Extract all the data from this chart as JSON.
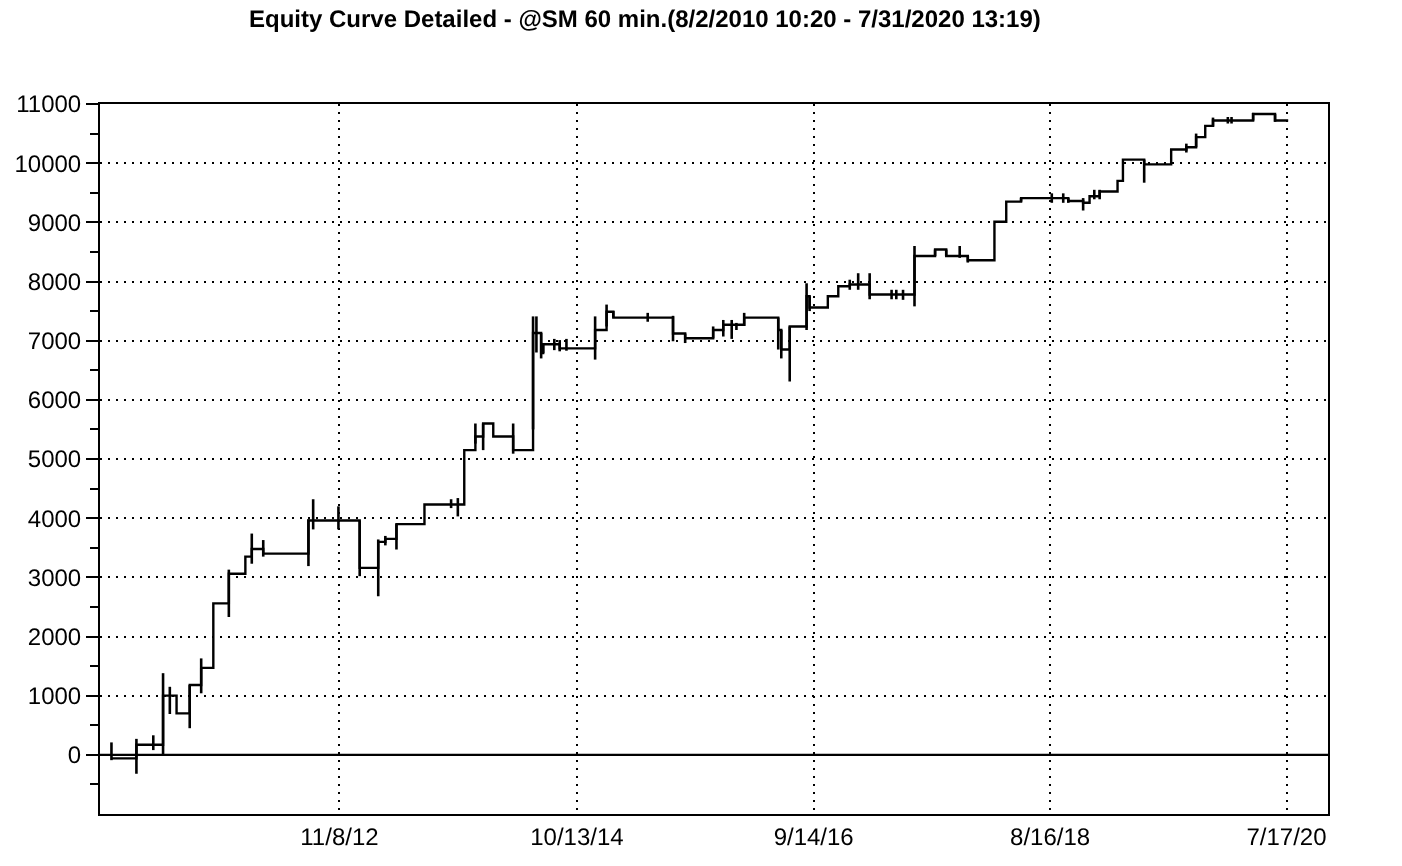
{
  "chart_data": {
    "type": "step",
    "title": "Equity Curve Detailed - @SM 60 min.(8/2/2010 10:20 - 7/31/2020 13:19)",
    "x": [
      "2011-01-02",
      "2011-03-17",
      "2011-05-06",
      "2011-06-04",
      "2011-06-24",
      "2011-07-14",
      "2011-08-22",
      "2011-09-25",
      "2011-10-31",
      "2011-12-16",
      "2012-02-03",
      "2012-02-22",
      "2012-03-27",
      "2012-08-08",
      "2012-08-22",
      "2012-11-05",
      "2013-01-07",
      "2013-03-03",
      "2013-03-24",
      "2013-04-26",
      "2013-07-18",
      "2013-10-05",
      "2013-10-25",
      "2013-11-13",
      "2013-12-16",
      "2014-01-08",
      "2014-02-07",
      "2014-04-07",
      "2014-06-05",
      "2014-06-15",
      "2014-06-29",
      "2014-07-05",
      "2014-08-07",
      "2014-08-23",
      "2014-09-12",
      "2014-12-06",
      "2015-01-09",
      "2015-01-29",
      "2015-05-11",
      "2015-07-25",
      "2015-08-30",
      "2015-11-21",
      "2015-12-21",
      "2016-01-15",
      "2016-01-29",
      "2016-02-21",
      "2016-06-01",
      "2016-06-10",
      "2016-07-05",
      "2016-08-24",
      "2016-09-02",
      "2016-10-26",
      "2016-11-26",
      "2016-12-30",
      "2017-01-24",
      "2017-02-27",
      "2017-05-03",
      "2017-05-17",
      "2017-06-06",
      "2017-07-10",
      "2017-09-09",
      "2017-10-12",
      "2017-11-21",
      "2017-12-15",
      "2018-03-04",
      "2018-04-08",
      "2018-05-22",
      "2018-08-21",
      "2018-09-24",
      "2018-10-09",
      "2018-11-22",
      "2018-12-11",
      "2018-12-25",
      "2019-01-10",
      "2019-03-04",
      "2019-03-20",
      "2019-05-22",
      "2019-08-10",
      "2019-09-24",
      "2019-10-23",
      "2019-11-19",
      "2019-12-12",
      "2020-01-25",
      "2020-02-05",
      "2020-04-09",
      "2020-06-13",
      "2020-07-22"
    ],
    "values": [
      -60,
      170,
      170,
      1000,
      1000,
      700,
      1180,
      1470,
      2560,
      3060,
      3350,
      3480,
      3400,
      3960,
      3960,
      3960,
      3160,
      3600,
      3650,
      3900,
      4230,
      4230,
      4230,
      5150,
      5380,
      5600,
      5380,
      5150,
      7130,
      7130,
      6790,
      6940,
      6940,
      6870,
      6870,
      7180,
      7490,
      7390,
      7390,
      7120,
      7040,
      7180,
      7270,
      7270,
      7270,
      7390,
      7180,
      6850,
      7240,
      7750,
      7560,
      7750,
      7920,
      7950,
      7950,
      7780,
      7780,
      7780,
      7780,
      8430,
      8540,
      8430,
      8430,
      8360,
      9010,
      9350,
      9410,
      9410,
      9410,
      9360,
      9330,
      9440,
      9440,
      9520,
      9700,
      10060,
      9980,
      10230,
      10270,
      10440,
      10630,
      10720,
      10720,
      10720,
      10830,
      10720,
      10720
    ],
    "errors": [
      [
        -90,
        210
      ],
      [
        -320,
        270
      ],
      [
        80,
        330
      ],
      [
        0,
        1380
      ],
      [
        690,
        1150
      ],
      null,
      [
        450,
        1180
      ],
      [
        1040,
        1630
      ],
      null,
      [
        2330,
        3130
      ],
      null,
      [
        3230,
        3740
      ],
      [
        3350,
        3630
      ],
      [
        3190,
        3980
      ],
      [
        3810,
        4320
      ],
      [
        3810,
        4200
      ],
      [
        3020,
        3960
      ],
      [
        2680,
        3640
      ],
      [
        3540,
        3700
      ],
      [
        3470,
        3900
      ],
      null,
      [
        4170,
        4320
      ],
      [
        4030,
        4340
      ],
      null,
      [
        5260,
        5600
      ],
      [
        5150,
        5600
      ],
      null,
      [
        5090,
        5600
      ],
      [
        5500,
        7410
      ],
      [
        6800,
        7410
      ],
      [
        6700,
        7130
      ],
      [
        6790,
        6960
      ],
      [
        6840,
        7030
      ],
      [
        6820,
        7010
      ],
      [
        6830,
        7030
      ],
      [
        6680,
        7410
      ],
      [
        7240,
        7610
      ],
      [
        7390,
        7500
      ],
      [
        7320,
        7470
      ],
      [
        6990,
        7420
      ],
      [
        6960,
        7120
      ],
      [
        7040,
        7240
      ],
      [
        7070,
        7350
      ],
      [
        7030,
        7350
      ],
      [
        7180,
        7300
      ],
      [
        7250,
        7470
      ],
      [
        6850,
        7390
      ],
      [
        6700,
        7180
      ],
      [
        6310,
        7240
      ],
      [
        7180,
        7970
      ],
      [
        7500,
        7750
      ],
      null,
      null,
      [
        7860,
        8030
      ],
      [
        7860,
        8140
      ],
      [
        7700,
        8140
      ],
      [
        7700,
        7860
      ],
      [
        7700,
        7860
      ],
      [
        7690,
        7860
      ],
      [
        7580,
        8600
      ],
      [
        8430,
        8540
      ],
      [
        8430,
        8540
      ],
      [
        8400,
        8600
      ],
      [
        8320,
        8430
      ],
      null,
      null,
      [
        9350,
        9410
      ],
      [
        9330,
        9490
      ],
      [
        9330,
        9490
      ],
      [
        9330,
        9410
      ],
      [
        9200,
        9410
      ],
      null,
      [
        9390,
        9550
      ],
      [
        9390,
        9550
      ],
      null,
      null,
      [
        9670,
        10060
      ],
      null,
      [
        10180,
        10330
      ],
      [
        10270,
        10500
      ],
      null,
      [
        10620,
        10770
      ],
      [
        10670,
        10780
      ],
      [
        10670,
        10780
      ],
      [
        10720,
        10850
      ],
      [
        10700,
        10830
      ],
      null
    ],
    "color": "#000000",
    "xlim": [
      "2010-11-29",
      "2020-11-17"
    ],
    "xticks": [
      {
        "value": "2012-11-08",
        "label": "11/8/12"
      },
      {
        "value": "2014-10-13",
        "label": "10/13/14"
      },
      {
        "value": "2016-09-14",
        "label": "9/14/16"
      },
      {
        "value": "2018-08-16",
        "label": "8/16/18"
      },
      {
        "value": "2020-07-17",
        "label": "7/17/20"
      }
    ],
    "ylim": [
      -1000,
      11000
    ],
    "yticks": [
      {
        "value": -500,
        "label": null
      },
      0,
      {
        "value": 500,
        "label": null
      },
      1000,
      {
        "value": 1500,
        "label": null
      },
      2000,
      {
        "value": 2500,
        "label": null
      },
      3000,
      {
        "value": 3500,
        "label": null
      },
      4000,
      {
        "value": 4500,
        "label": null
      },
      5000,
      {
        "value": 5500,
        "label": null
      },
      6000,
      {
        "value": 6500,
        "label": null
      },
      7000,
      {
        "value": 7500,
        "label": null
      },
      8000,
      {
        "value": 8500,
        "label": null
      },
      9000,
      {
        "value": 9500,
        "label": null
      },
      10000,
      {
        "value": 10500,
        "label": null
      },
      11000
    ],
    "ref_lines": [
      {
        "axis": "y",
        "value": 0,
        "color": "#000000"
      }
    ],
    "grid": true
  }
}
